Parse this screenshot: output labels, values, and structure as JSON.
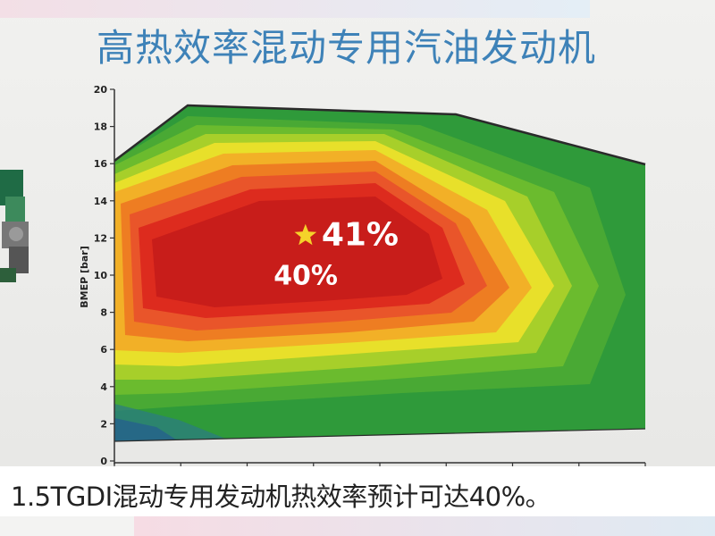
{
  "slide": {
    "title": "高热效率混动专用汽油发动机"
  },
  "caption": "1.5TGDI混动专用发动机热效率预计可达40%。",
  "chart_data": {
    "type": "heatmap",
    "ylabel": "BMEP [bar]",
    "ylim": [
      0,
      20
    ],
    "yticks": [
      0,
      2,
      4,
      6,
      8,
      10,
      12,
      14,
      16,
      18,
      20
    ],
    "x_tick_marks": 8,
    "max_torque_curve": [
      {
        "x": 0.0,
        "y": 16.2
      },
      {
        "x": 0.13,
        "y": 19.1
      },
      {
        "x": 0.62,
        "y": 18.6
      },
      {
        "x": 1.0,
        "y": 15.9
      }
    ],
    "min_load_curve": [
      {
        "x": 0.0,
        "y": 1.0
      },
      {
        "x": 1.0,
        "y": 1.7
      }
    ],
    "annotations": [
      {
        "text": "41%",
        "marker": "star",
        "x": 0.36,
        "y": 11.6
      },
      {
        "text": "40%",
        "x": 0.3,
        "y": 9.5
      }
    ],
    "colors": {
      "outer": "#2f9a3a",
      "mid_green": "#6bbb2e",
      "yellow": "#e8e02a",
      "orange": "#ee7d22",
      "red": "#dd2b1e",
      "core": "#c81d1a",
      "low_blue": "#1d3c8a",
      "outline": "#2a2a2a",
      "title": "#3e82b8",
      "star": "#f5d22a"
    }
  }
}
